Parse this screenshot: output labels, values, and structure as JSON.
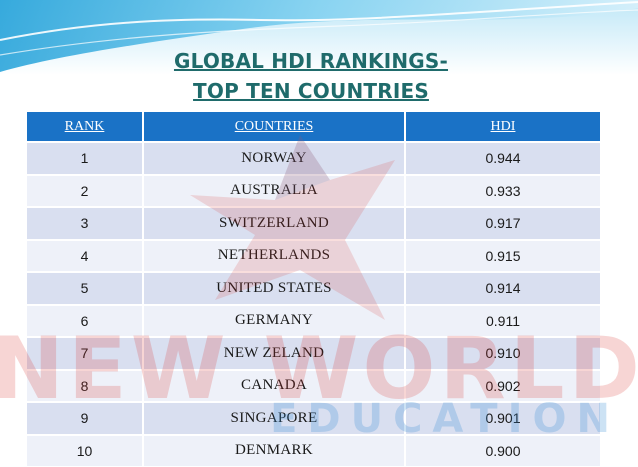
{
  "title": {
    "line1": "GLOBAL HDI RANKINGS-",
    "line2": "TOP TEN COUNTRIES"
  },
  "table": {
    "headers": [
      "RANK",
      "COUNTRIES",
      "HDI"
    ],
    "rows": [
      {
        "rank": "1",
        "country": "NORWAY",
        "hdi": "0.944"
      },
      {
        "rank": "2",
        "country": "AUSTRALIA",
        "hdi": "0.933"
      },
      {
        "rank": "3",
        "country": "SWITZERLAND",
        "hdi": "0.917"
      },
      {
        "rank": "4",
        "country": "NETHERLANDS",
        "hdi": "0.915"
      },
      {
        "rank": "5",
        "country": "UNITED STATES",
        "hdi": "0.914"
      },
      {
        "rank": "6",
        "country": "GERMANY",
        "hdi": "0.911"
      },
      {
        "rank": "7",
        "country": "NEW ZELAND",
        "hdi": "0.910"
      },
      {
        "rank": "8",
        "country": "CANADA",
        "hdi": "0.902"
      },
      {
        "rank": "9",
        "country": "SINGAPORE",
        "hdi": "0.901"
      },
      {
        "rank": "10",
        "country": "DENMARK",
        "hdi": "0.900"
      }
    ]
  },
  "watermark": {
    "line1": "NEW WORLD",
    "line2": "EDUCATION"
  },
  "colors": {
    "title": "#1f6b6b",
    "header_bg": "#1a72c6",
    "row_odd": "#ced6ec",
    "row_even": "#e8ecf7",
    "wave": "#2aa6d9",
    "watermark_red": "#d9322e",
    "watermark_blue": "#3a8fd6"
  }
}
